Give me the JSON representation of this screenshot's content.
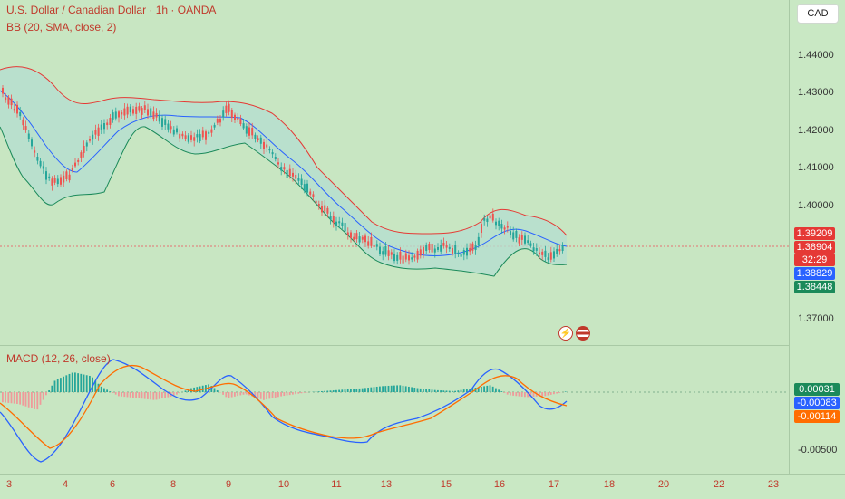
{
  "header": {
    "symbol_title": "U.S. Dollar / Canadian Dollar · 1h · OANDA",
    "bb_label": "BB (20, SMA, close, 2)",
    "currency_button": "CAD"
  },
  "price_axis": {
    "ticks": [
      "1.44000",
      "1.43000",
      "1.42000",
      "1.41000",
      "1.40000",
      "1.37000"
    ],
    "tags": {
      "upper": "1.39209",
      "last": "1.38904",
      "countdown": "32:29",
      "middle": "1.38829",
      "lower": "1.38448"
    }
  },
  "macd": {
    "label": "MACD (12, 26, close)",
    "ticks": [
      "-0.00500"
    ],
    "tags": {
      "hist": "0.00031",
      "macd": "-0.00083",
      "signal": "-0.00114"
    }
  },
  "time_axis": {
    "labels": [
      "3",
      "4",
      "6",
      "8",
      "9",
      "10",
      "11",
      "13",
      "15",
      "16",
      "17",
      "18",
      "20",
      "22",
      "23"
    ]
  },
  "icons": [
    "lightning-icon",
    "us-flag-icon"
  ],
  "colors": {
    "background": "#c8e6c2",
    "bb_upper": "#e53935",
    "bb_basis": "#2962ff",
    "bb_lower": "#1b8a5a",
    "bb_fill": "#bfe3d0",
    "candle_up": "#26a69a",
    "candle_down": "#ef5350",
    "macd_line": "#2962ff",
    "signal_line": "#ff6d00"
  }
}
